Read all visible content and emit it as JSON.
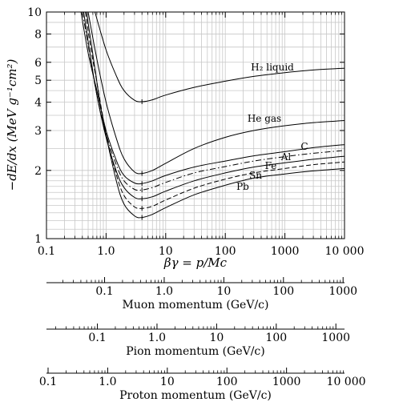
{
  "chart_data": {
    "type": "line",
    "x_label": "βγ = p/Mc",
    "y_label": "−dE/dx (MeV g⁻¹cm²)",
    "x_scale": "log",
    "y_scale": "log",
    "xlim": [
      0.1,
      10000
    ],
    "ylim": [
      1,
      10
    ],
    "grid": true,
    "x_tick_labels": [
      "0.1",
      "1.0",
      "10",
      "100",
      "1000",
      "10 000"
    ],
    "y_tick_labels": [
      "1",
      "2",
      "3",
      "4",
      "5",
      "6",
      "8",
      "10"
    ],
    "series": [
      {
        "name": "H₂ liquid",
        "style": "solid",
        "points": [
          [
            0.65,
            10
          ],
          [
            1.0,
            6.8
          ],
          [
            1.5,
            5.2
          ],
          [
            2.0,
            4.5
          ],
          [
            3.0,
            4.08
          ],
          [
            4.0,
            4.02
          ],
          [
            6.0,
            4.1
          ],
          [
            10,
            4.3
          ],
          [
            30,
            4.65
          ],
          [
            100,
            4.95
          ],
          [
            300,
            5.2
          ],
          [
            1000,
            5.4
          ],
          [
            3000,
            5.55
          ],
          [
            10000,
            5.65
          ]
        ]
      },
      {
        "name": "He gas",
        "style": "solid",
        "points": [
          [
            0.5,
            10
          ],
          [
            0.7,
            6.2
          ],
          [
            1.0,
            4.0
          ],
          [
            1.5,
            2.75
          ],
          [
            2.0,
            2.25
          ],
          [
            3.0,
            1.97
          ],
          [
            4.0,
            1.94
          ],
          [
            6.0,
            2.0
          ],
          [
            10,
            2.15
          ],
          [
            30,
            2.5
          ],
          [
            100,
            2.8
          ],
          [
            300,
            3.0
          ],
          [
            1000,
            3.15
          ],
          [
            3000,
            3.25
          ],
          [
            10000,
            3.32
          ]
        ]
      },
      {
        "name": "C",
        "style": "solid",
        "points": [
          [
            0.38,
            10
          ],
          [
            0.5,
            6.6
          ],
          [
            0.7,
            4.5
          ],
          [
            1.0,
            3.0
          ],
          [
            1.5,
            2.2
          ],
          [
            2.0,
            1.9
          ],
          [
            3.0,
            1.76
          ],
          [
            4.0,
            1.75
          ],
          [
            6.0,
            1.8
          ],
          [
            10,
            1.9
          ],
          [
            30,
            2.07
          ],
          [
            100,
            2.2
          ],
          [
            300,
            2.32
          ],
          [
            1000,
            2.42
          ],
          [
            3000,
            2.52
          ],
          [
            10000,
            2.6
          ]
        ]
      },
      {
        "name": "Al",
        "style": "dash-dot",
        "points": [
          [
            0.4,
            10
          ],
          [
            0.5,
            7.2
          ],
          [
            0.7,
            4.3
          ],
          [
            1.0,
            2.9
          ],
          [
            1.5,
            2.1
          ],
          [
            2.0,
            1.8
          ],
          [
            3.0,
            1.65
          ],
          [
            4.0,
            1.64
          ],
          [
            6.0,
            1.68
          ],
          [
            10,
            1.77
          ],
          [
            30,
            1.95
          ],
          [
            100,
            2.08
          ],
          [
            300,
            2.2
          ],
          [
            1000,
            2.3
          ],
          [
            3000,
            2.38
          ],
          [
            10000,
            2.45
          ]
        ]
      },
      {
        "name": "Fe",
        "style": "solid",
        "points": [
          [
            0.42,
            10
          ],
          [
            0.5,
            7.4
          ],
          [
            0.7,
            4.3
          ],
          [
            1.0,
            2.8
          ],
          [
            1.5,
            1.97
          ],
          [
            2.0,
            1.68
          ],
          [
            3.0,
            1.52
          ],
          [
            4.0,
            1.5
          ],
          [
            6.0,
            1.53
          ],
          [
            10,
            1.62
          ],
          [
            30,
            1.8
          ],
          [
            100,
            1.95
          ],
          [
            300,
            2.07
          ],
          [
            1000,
            2.16
          ],
          [
            3000,
            2.24
          ],
          [
            10000,
            2.31
          ]
        ]
      },
      {
        "name": "Sn",
        "style": "dashed",
        "points": [
          [
            0.45,
            10
          ],
          [
            0.55,
            7.0
          ],
          [
            0.7,
            4.9
          ],
          [
            1.0,
            2.9
          ],
          [
            1.5,
            1.9
          ],
          [
            2.0,
            1.55
          ],
          [
            3.0,
            1.38
          ],
          [
            4.0,
            1.36
          ],
          [
            6.0,
            1.39
          ],
          [
            10,
            1.48
          ],
          [
            30,
            1.67
          ],
          [
            100,
            1.83
          ],
          [
            300,
            1.95
          ],
          [
            1000,
            2.04
          ],
          [
            3000,
            2.12
          ],
          [
            10000,
            2.18
          ]
        ]
      },
      {
        "name": "Pb",
        "style": "solid",
        "points": [
          [
            0.47,
            10
          ],
          [
            0.6,
            6.5
          ],
          [
            0.8,
            3.9
          ],
          [
            1.0,
            2.85
          ],
          [
            1.5,
            1.78
          ],
          [
            2.0,
            1.42
          ],
          [
            3.0,
            1.26
          ],
          [
            4.0,
            1.24
          ],
          [
            6.0,
            1.28
          ],
          [
            10,
            1.37
          ],
          [
            30,
            1.56
          ],
          [
            100,
            1.72
          ],
          [
            300,
            1.85
          ],
          [
            1000,
            1.93
          ],
          [
            3000,
            1.99
          ],
          [
            10000,
            2.04
          ]
        ]
      }
    ],
    "momentum_axes": [
      {
        "label": "Muon momentum (GeV/c)",
        "range": [
          0.0106,
          1057
        ],
        "tick_values": [
          0.1,
          1,
          10,
          100,
          1000
        ],
        "tick_labels": [
          "0.1",
          "1.0",
          "10",
          "100",
          "1000"
        ]
      },
      {
        "label": "Pion momentum (GeV/c)",
        "range": [
          0.014,
          1396
        ],
        "tick_values": [
          0.1,
          1,
          10,
          100,
          1000
        ],
        "tick_labels": [
          "0.1",
          "1.0",
          "10",
          "100",
          "1000"
        ]
      },
      {
        "label": "Proton momentum (GeV/c)",
        "range": [
          0.094,
          9383
        ],
        "tick_values": [
          0.1,
          1,
          10,
          100,
          1000,
          10000
        ],
        "tick_labels": [
          "0.1",
          "1.0",
          "10",
          "100",
          "1000",
          "10 000"
        ]
      }
    ]
  }
}
